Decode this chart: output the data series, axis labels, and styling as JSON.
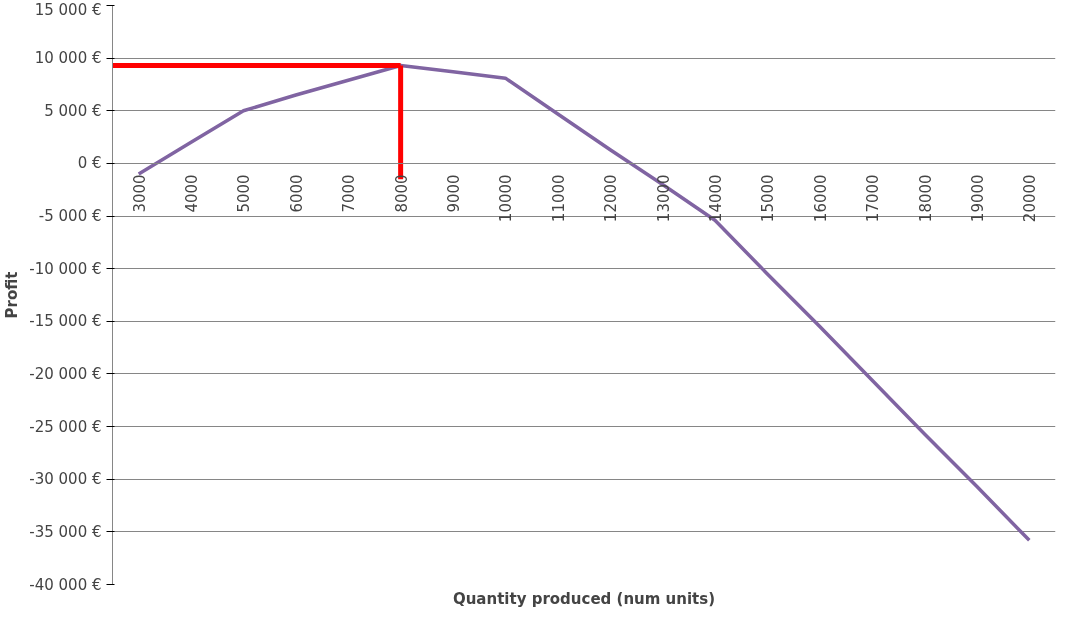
{
  "chart_data": {
    "type": "line",
    "xlabel": "Quantity produced (num units)",
    "ylabel": "Profit",
    "categories": [
      "3000",
      "4000",
      "5000",
      "6000",
      "7000",
      "8000",
      "9000",
      "10000",
      "11000",
      "12000",
      "13000",
      "14000",
      "15000",
      "16000",
      "17000",
      "18000",
      "19000",
      "20000"
    ],
    "series": [
      {
        "color": "#8064a2",
        "values": [
          -1000,
          2000,
          5000,
          6500,
          7900,
          9300,
          8700,
          8100,
          4700,
          1300,
          -2000,
          -5400,
          -10500,
          -15500,
          -20600,
          -25700,
          -30700,
          -35800
        ]
      }
    ],
    "ylim": [
      -40000,
      15000
    ],
    "yticks": [
      {
        "value": -40000,
        "label": "-40 000 €"
      },
      {
        "value": -35000,
        "label": "-35 000 €"
      },
      {
        "value": -30000,
        "label": "-30 000 €"
      },
      {
        "value": -25000,
        "label": "-25 000 €"
      },
      {
        "value": -20000,
        "label": "-20 000 €"
      },
      {
        "value": -15000,
        "label": "-15 000 €"
      },
      {
        "value": -10000,
        "label": "-10 000 €"
      },
      {
        "value": -5000,
        "label": "-5 000 €"
      },
      {
        "value": 0,
        "label": "0 €"
      },
      {
        "value": 5000,
        "label": "5 000 €"
      },
      {
        "value": 10000,
        "label": "10 000 €"
      },
      {
        "value": 15000,
        "label": "15 000 €"
      }
    ],
    "ref_lines": [
      {
        "axis": "y",
        "value": 9300,
        "color": "#ff0000"
      },
      {
        "axis": "x",
        "value": "8000",
        "color": "#ff0000"
      }
    ],
    "grid": "y",
    "marker": "none",
    "line_style": "solid"
  }
}
